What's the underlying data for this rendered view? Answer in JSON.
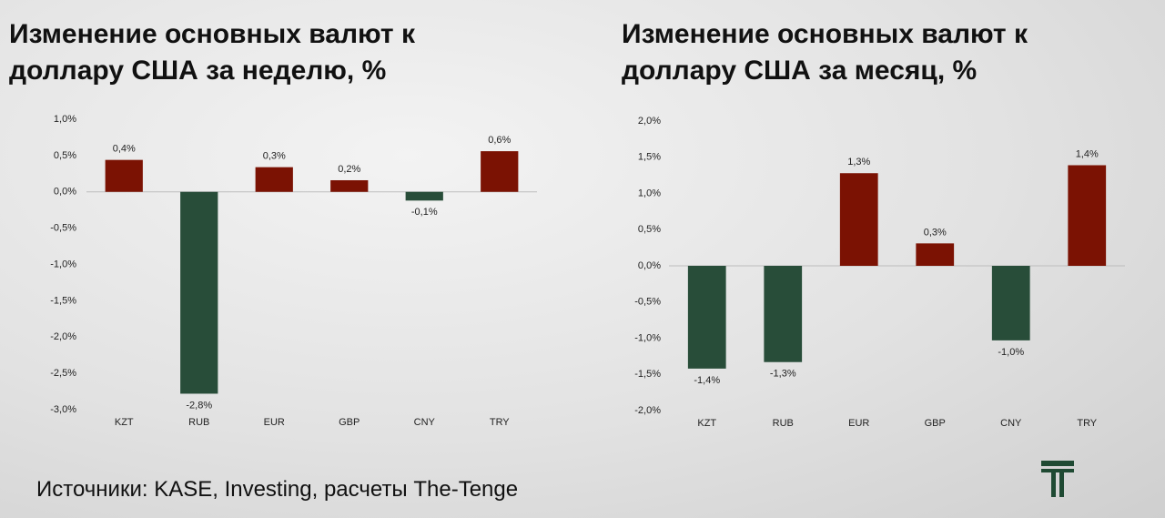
{
  "chart_data": [
    {
      "type": "bar",
      "title": "Изменение основных валют к доллару США за неделю, %",
      "categories": [
        "KZT",
        "RUB",
        "EUR",
        "GBP",
        "CNY",
        "TRY"
      ],
      "values": [
        0.44,
        -2.78,
        0.34,
        0.16,
        -0.12,
        0.56
      ],
      "value_labels": [
        "0,4%",
        "-2,8%",
        "0,3%",
        "0,2%",
        "-0,1%",
        "0,6%"
      ],
      "colors": [
        "#7b1203",
        "#284d39",
        "#7b1203",
        "#7b1203",
        "#284d39",
        "#7b1203"
      ],
      "ylim": [
        -3.0,
        1.0
      ],
      "yticks": [
        {
          "value": 1.0,
          "label": "1,0%"
        },
        {
          "value": 0.5,
          "label": "0,5%"
        },
        {
          "value": 0.0,
          "label": "0,0%"
        },
        {
          "value": -0.5,
          "label": "-0,5%"
        },
        {
          "value": -1.0,
          "label": "-1,0%"
        },
        {
          "value": -1.5,
          "label": "-1,5%"
        },
        {
          "value": -2.0,
          "label": "-2,0%"
        },
        {
          "value": -2.5,
          "label": "-2,5%"
        },
        {
          "value": -3.0,
          "label": "-3,0%"
        }
      ],
      "grid": false
    },
    {
      "type": "bar",
      "title": "Изменение основных валют к доллару США за месяц, %",
      "categories": [
        "KZT",
        "RUB",
        "EUR",
        "GBP",
        "CNY",
        "TRY"
      ],
      "values": [
        -1.42,
        -1.33,
        1.28,
        0.31,
        -1.03,
        1.39
      ],
      "value_labels": [
        "-1,4%",
        "-1,3%",
        "1,3%",
        "0,3%",
        "-1,0%",
        "1,4%"
      ],
      "colors": [
        "#284d39",
        "#284d39",
        "#7b1203",
        "#7b1203",
        "#284d39",
        "#7b1203"
      ],
      "ylim": [
        -2.0,
        2.0
      ],
      "yticks": [
        {
          "value": 2.0,
          "label": "2,0%"
        },
        {
          "value": 1.5,
          "label": "1,5%"
        },
        {
          "value": 1.0,
          "label": "1,0%"
        },
        {
          "value": 0.5,
          "label": "0,5%"
        },
        {
          "value": 0.0,
          "label": "0,0%"
        },
        {
          "value": -0.5,
          "label": "-0,5%"
        },
        {
          "value": -1.0,
          "label": "-1,0%"
        },
        {
          "value": -1.5,
          "label": "-1,5%"
        },
        {
          "value": -2.0,
          "label": "-2,0%"
        }
      ],
      "grid": false
    }
  ],
  "source": "Источники: KASE, Investing, расчеты The-Tenge"
}
